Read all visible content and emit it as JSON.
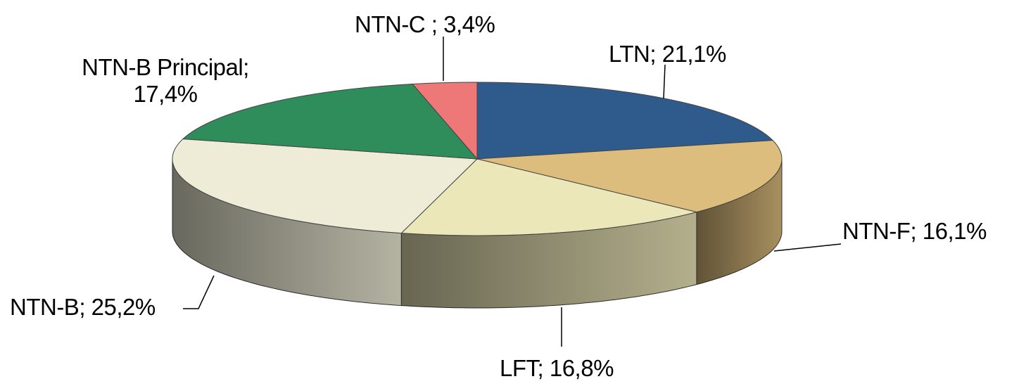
{
  "chart_data": {
    "type": "pie3d",
    "values": [
      21.1,
      16.1,
      16.8,
      25.2,
      17.4,
      3.4
    ],
    "value_labels": [
      "LTN; 21,1%",
      "NTN-F; 16,1%",
      "LFT; 16,8%",
      "NTN-B; 25,2%",
      "NTN-B Principal; 17,4%",
      "NTN-C ; 3,4%"
    ],
    "colors": [
      "#2e5b8c",
      "#dcbd7d",
      "#ece7b9",
      "#eeecd6",
      "#2f8c5b",
      "#ee7878"
    ]
  }
}
